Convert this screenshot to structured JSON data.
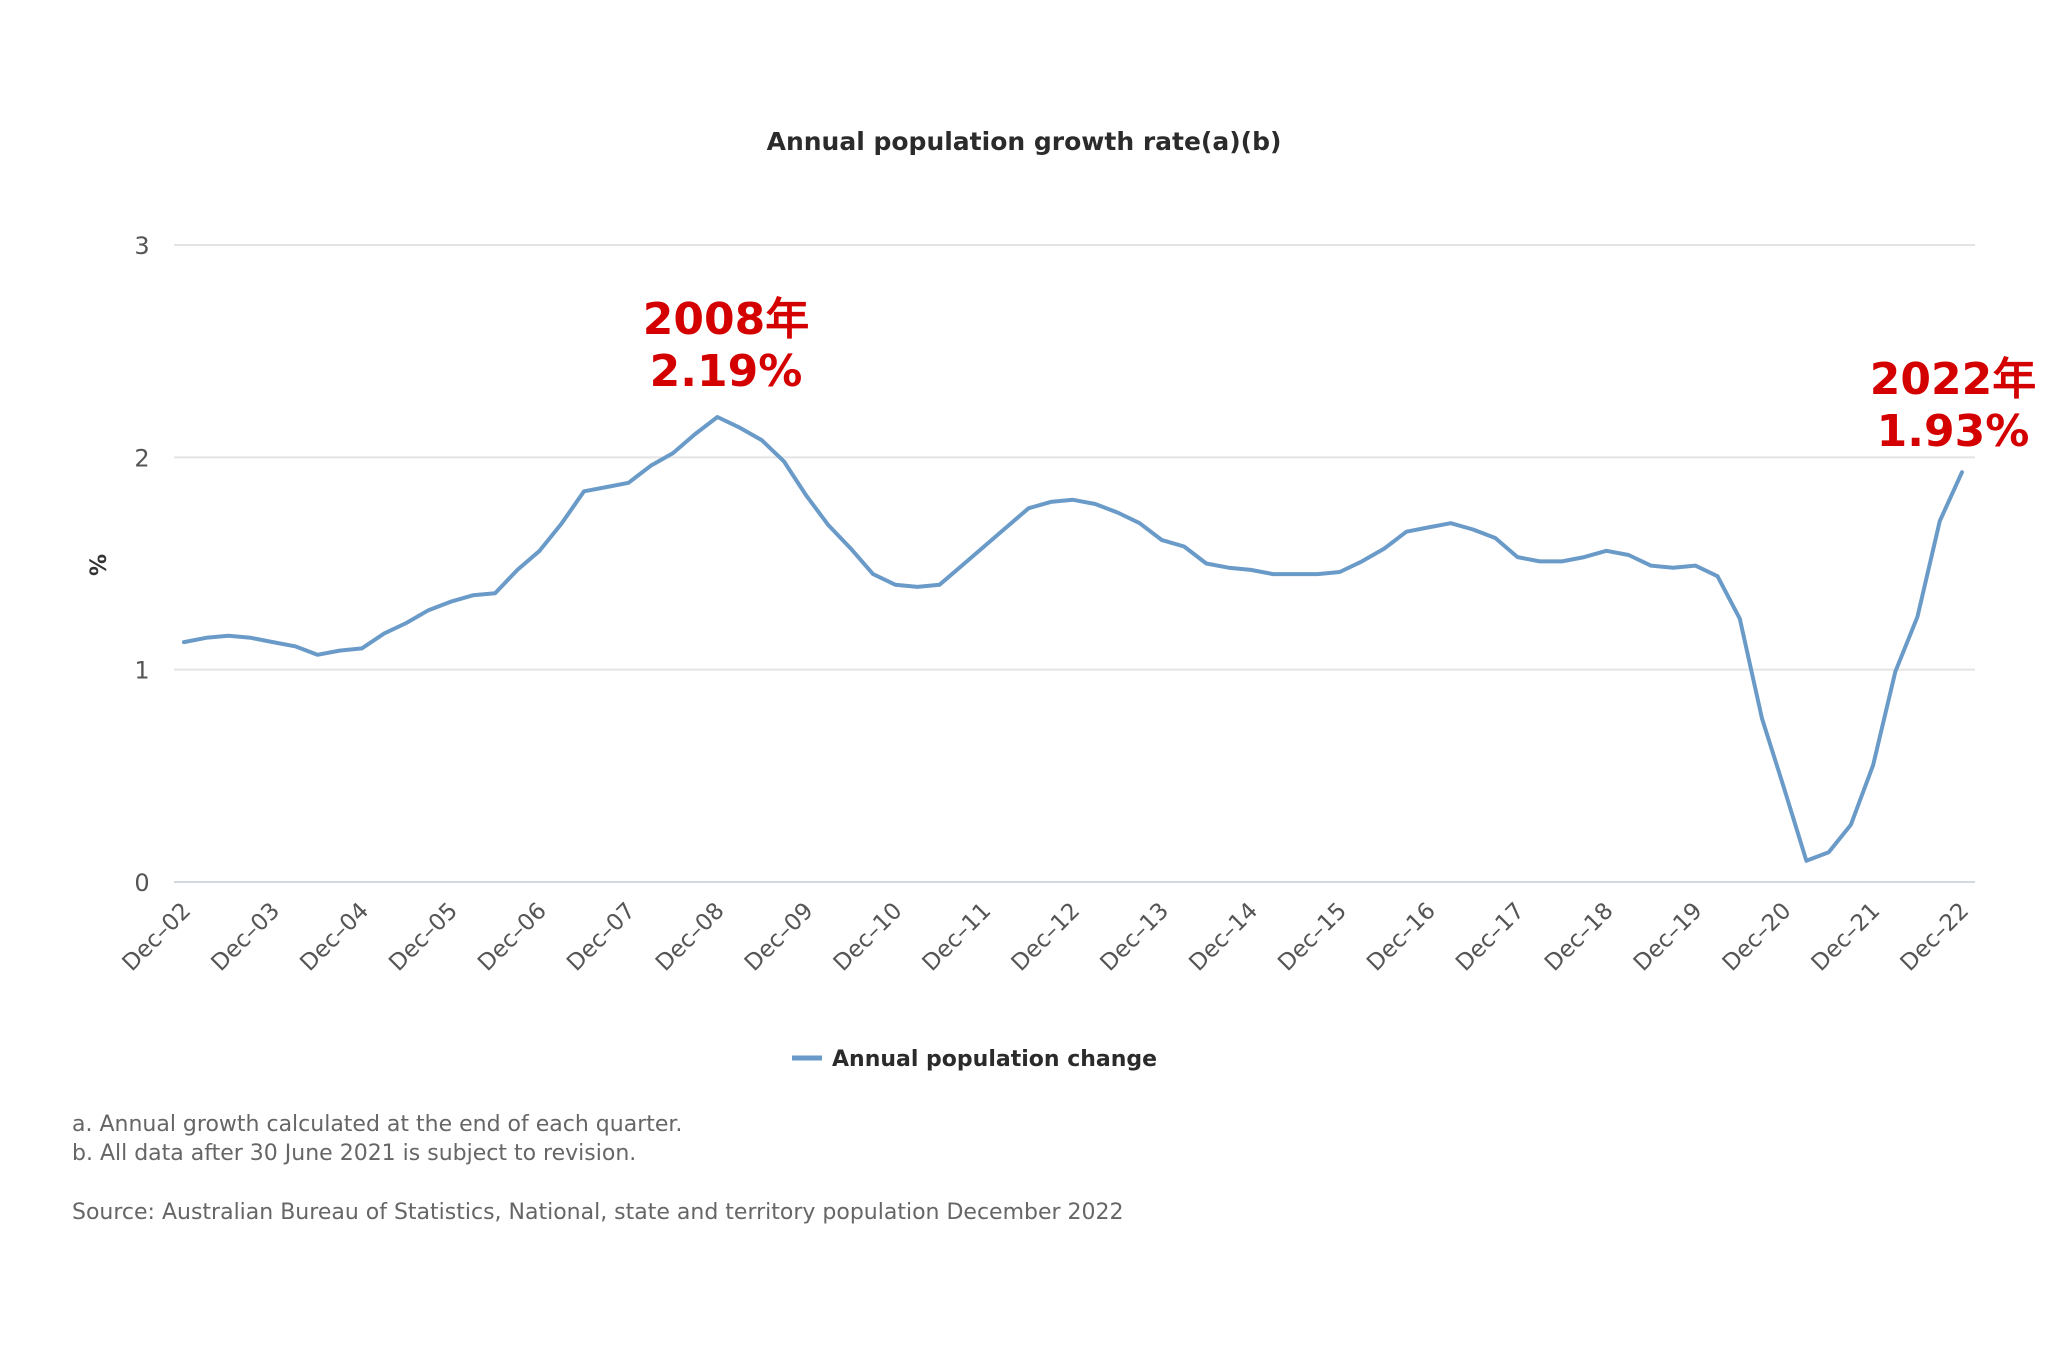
{
  "chart_data": {
    "type": "line",
    "title": "Annual population growth rate(a)(b)",
    "xlabel": "",
    "ylabel": "%",
    "ylim": [
      0,
      3
    ],
    "yticks": [
      "0",
      "1",
      "2",
      "3"
    ],
    "grid": true,
    "legend_position": "bottom-center",
    "x_tick_labels": [
      "Dec–02",
      "Dec–03",
      "Dec–04",
      "Dec–05",
      "Dec–06",
      "Dec–07",
      "Dec–08",
      "Dec–09",
      "Dec–10",
      "Dec–11",
      "Dec–12",
      "Dec–13",
      "Dec–14",
      "Dec–15",
      "Dec–16",
      "Dec–17",
      "Dec–18",
      "Dec–19",
      "Dec–20",
      "Dec–21",
      "Dec–22"
    ],
    "x_frequency": "quarterly",
    "x_start": "Dec-02",
    "x_end": "Dec-22",
    "series": [
      {
        "name": "Annual population change",
        "color": "#6a9bc8",
        "values": [
          1.13,
          1.15,
          1.16,
          1.15,
          1.13,
          1.11,
          1.07,
          1.09,
          1.1,
          1.17,
          1.22,
          1.28,
          1.32,
          1.35,
          1.36,
          1.47,
          1.56,
          1.69,
          1.84,
          1.86,
          1.88,
          1.96,
          2.02,
          2.11,
          2.19,
          2.14,
          2.08,
          1.98,
          1.82,
          1.68,
          1.57,
          1.45,
          1.4,
          1.39,
          1.4,
          1.49,
          1.58,
          1.67,
          1.76,
          1.79,
          1.8,
          1.78,
          1.74,
          1.69,
          1.61,
          1.58,
          1.5,
          1.48,
          1.47,
          1.45,
          1.45,
          1.45,
          1.46,
          1.51,
          1.57,
          1.65,
          1.67,
          1.69,
          1.66,
          1.62,
          1.53,
          1.51,
          1.51,
          1.53,
          1.56,
          1.54,
          1.49,
          1.48,
          1.49,
          1.44,
          1.24,
          0.77,
          0.44,
          0.1,
          0.14,
          0.27,
          0.55,
          0.99,
          1.25,
          1.7,
          1.93
        ]
      }
    ],
    "annotations": [
      {
        "target_x": "Sep-08",
        "value": 2.19,
        "line1": "2008年",
        "line2": "2.19%",
        "color": "#d40000"
      },
      {
        "target_x": "Dec-22",
        "value": 1.93,
        "line1": "2022年",
        "line2": "1.93%",
        "color": "#d40000"
      }
    ]
  },
  "legend": {
    "label": "Annual population change"
  },
  "notes": {
    "a": "a. Annual growth calculated at the end of each quarter.",
    "b": "b. All data after 30 June 2021 is subject to revision.",
    "source": "Source: Australian Bureau of Statistics, National, state and territory population December 2022"
  }
}
